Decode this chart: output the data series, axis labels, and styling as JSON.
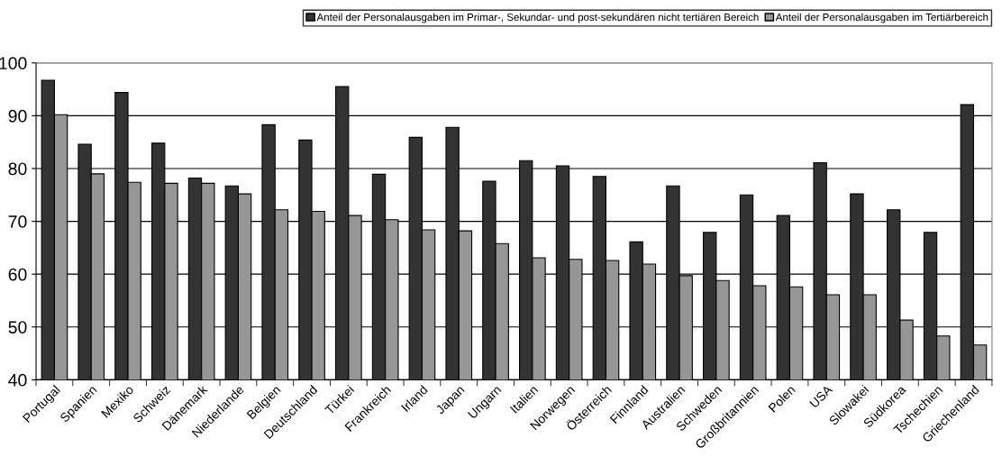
{
  "chart_data": {
    "type": "bar",
    "categories": [
      "Portugal",
      "Spanien",
      "Mexiko",
      "Schweiz",
      "Dänemark",
      "Niederlande",
      "Belgien",
      "Deutschland",
      "Türkei",
      "Frankreich",
      "Irland",
      "Japan",
      "Ungarn",
      "Italien",
      "Norwegen",
      "Österreich",
      "Finnland",
      "Australien",
      "Schweden",
      "Großbritannien",
      "Polen",
      "USA",
      "Slowakei",
      "Südkorea",
      "Tschechien",
      "Griechenland"
    ],
    "series": [
      {
        "name": "Anteil der Personalausgaben im Primar-, Sekundar- und post-sekundären nicht tertiären Bereich",
        "color": "#333333",
        "values": [
          96.7,
          84.6,
          94.4,
          84.8,
          78.2,
          76.7,
          88.3,
          85.4,
          95.5,
          78.9,
          85.9,
          87.8,
          77.6,
          81.5,
          80.5,
          78.5,
          66.1,
          76.7,
          67.9,
          75.0,
          71.1,
          81.1,
          75.2,
          72.2,
          67.9,
          92.1
        ]
      },
      {
        "name": "Anteil der Personalausgaben im Tertiärbereich",
        "color": "#969696",
        "values": [
          90.2,
          79.0,
          77.4,
          77.2,
          77.2,
          75.2,
          72.2,
          71.9,
          71.1,
          70.3,
          68.4,
          68.2,
          65.8,
          63.1,
          62.8,
          62.6,
          61.9,
          59.7,
          58.8,
          57.8,
          57.6,
          56.1,
          56.1,
          51.3,
          48.3,
          46.6
        ]
      }
    ],
    "ylim": [
      40,
      100
    ],
    "yticks": [
      40,
      50,
      60,
      70,
      80,
      90,
      100
    ],
    "grid": "y",
    "legend": "top"
  }
}
